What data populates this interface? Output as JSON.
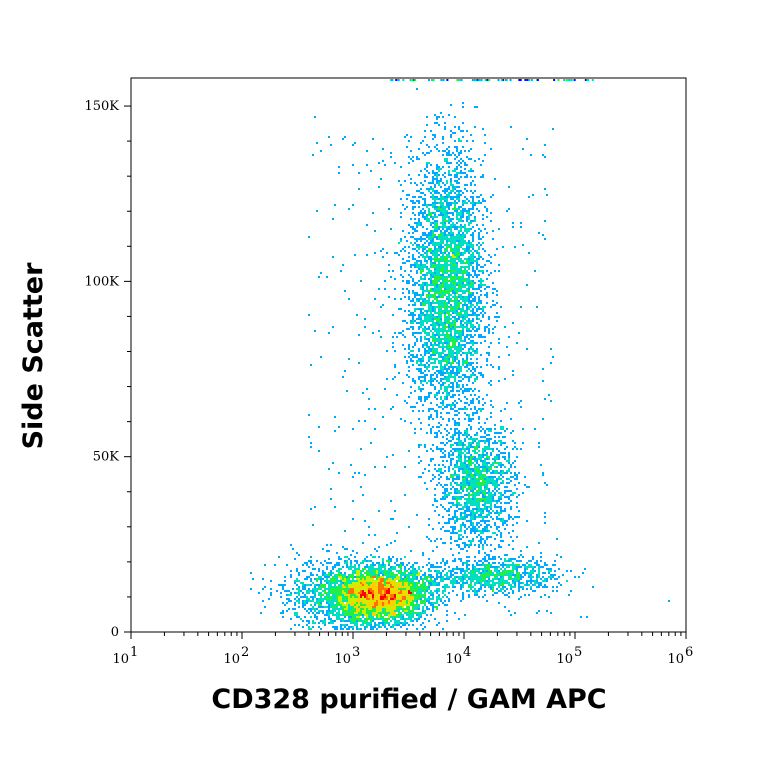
{
  "chart_data": {
    "type": "scatter",
    "subtype": "flow-cytometry density dot plot",
    "title": "",
    "xlabel": "CD328 purified / GAM APC",
    "ylabel": "Side Scatter",
    "x_scale": "log",
    "xlim": [
      10,
      1000000
    ],
    "ylim": [
      0,
      158000
    ],
    "x_ticks": [
      {
        "value": 10,
        "base": "10",
        "exp": "1"
      },
      {
        "value": 100,
        "base": "10",
        "exp": "2"
      },
      {
        "value": 1000,
        "base": "10",
        "exp": "3"
      },
      {
        "value": 10000,
        "base": "10",
        "exp": "4"
      },
      {
        "value": 100000,
        "base": "10",
        "exp": "5"
      },
      {
        "value": 1000000,
        "base": "10",
        "exp": "6"
      }
    ],
    "y_ticks": [
      {
        "value": 0,
        "label": "0"
      },
      {
        "value": 50000,
        "label": "50K"
      },
      {
        "value": 100000,
        "label": "100K"
      },
      {
        "value": 150000,
        "label": "150K"
      }
    ],
    "grid": false,
    "legend": "none",
    "density_colormap": [
      "#0000ff",
      "#00aaff",
      "#00e0c0",
      "#22ee44",
      "#c8f000",
      "#ffd000",
      "#ff7000",
      "#ff0000"
    ],
    "populations": [
      {
        "name_visible": false,
        "center_x": 1800,
        "center_y": 10500,
        "spread_log_x": 0.22,
        "spread_y": 3800,
        "relative_count": 0.36
      },
      {
        "name_visible": false,
        "center_x": 7000,
        "center_y": 98000,
        "spread_log_x": 0.17,
        "spread_y": 19000,
        "relative_count": 0.3
      },
      {
        "name_visible": false,
        "center_x": 13000,
        "center_y": 42000,
        "spread_log_x": 0.17,
        "spread_y": 9000,
        "relative_count": 0.12
      },
      {
        "name_visible": false,
        "center_x": 18000,
        "center_y": 16000,
        "spread_log_x": 0.3,
        "spread_y": 2500,
        "relative_count": 0.07
      },
      {
        "name_visible": false,
        "center_x": 700,
        "center_y": 11000,
        "spread_log_x": 0.25,
        "spread_y": 5000,
        "relative_count": 0.08
      }
    ],
    "outliers": [
      {
        "x": 115000,
        "y": 4000
      },
      {
        "x": 700000,
        "y": 9000
      },
      {
        "x": 130000,
        "y": 4000
      },
      {
        "x": 450,
        "y": 147000
      }
    ]
  }
}
